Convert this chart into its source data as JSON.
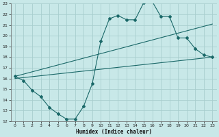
{
  "background_color": "#c8e8e8",
  "grid_color": "#a8cece",
  "line_color": "#1a6868",
  "xlabel": "Humidex (Indice chaleur)",
  "xlim": [
    -0.5,
    23.5
  ],
  "ylim": [
    12,
    23
  ],
  "yticks": [
    12,
    13,
    14,
    15,
    16,
    17,
    18,
    19,
    20,
    21,
    22,
    23
  ],
  "xticks": [
    0,
    1,
    2,
    3,
    4,
    5,
    6,
    7,
    8,
    9,
    10,
    11,
    12,
    13,
    14,
    15,
    16,
    17,
    18,
    19,
    20,
    21,
    22,
    23
  ],
  "xtick_labels": [
    "0",
    "1",
    "2",
    "3",
    "4",
    "5",
    "6",
    "7",
    "8",
    "9",
    "10",
    "11",
    "12",
    "13",
    "14",
    "15",
    "16",
    "17",
    "18",
    "19",
    "20",
    "21",
    "22",
    "23"
  ],
  "line1_x": [
    0,
    1,
    2,
    3,
    4,
    5,
    6,
    7,
    8,
    9,
    10,
    11,
    12,
    13,
    14,
    15,
    16,
    17,
    18,
    19,
    20,
    21,
    22,
    23
  ],
  "line1_y": [
    16.2,
    15.8,
    14.9,
    14.3,
    13.3,
    12.7,
    12.2,
    12.2,
    13.4,
    15.5,
    19.5,
    21.6,
    21.9,
    21.5,
    21.5,
    23.1,
    23.2,
    21.8,
    21.8,
    19.8,
    19.8,
    18.8,
    18.2,
    18.0
  ],
  "line2_x": [
    0,
    23
  ],
  "line2_y": [
    16.2,
    21.1
  ],
  "line3_x": [
    0,
    23
  ],
  "line3_y": [
    16.0,
    18.0
  ],
  "marker": "D",
  "markersize": 2.0,
  "linewidth": 0.8
}
